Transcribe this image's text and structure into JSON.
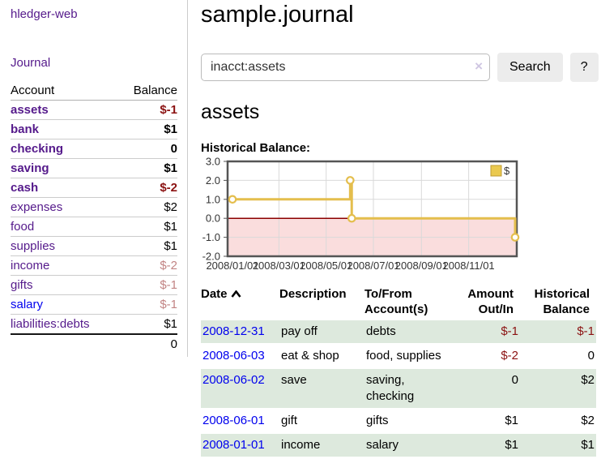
{
  "app": {
    "title": "hledger-web"
  },
  "sidebar": {
    "journal_link": "Journal",
    "accounts_table": {
      "headers": [
        "Account",
        "Balance"
      ],
      "rows": [
        {
          "account": "assets",
          "indent": 1,
          "bold": true,
          "link": "visited",
          "balance": "$-1",
          "style": "neg"
        },
        {
          "account": "bank",
          "indent": 2,
          "bold": true,
          "link": "visited",
          "balance": "$1",
          "style": "pos"
        },
        {
          "account": "checking",
          "indent": 3,
          "bold": true,
          "link": "visited",
          "balance": "0",
          "style": "pos"
        },
        {
          "account": "saving",
          "indent": 3,
          "bold": true,
          "link": "visited",
          "balance": "$1",
          "style": "pos"
        },
        {
          "account": "cash",
          "indent": 2,
          "bold": true,
          "link": "visited",
          "balance": "$-2",
          "style": "neg"
        },
        {
          "account": "expenses",
          "indent": 1,
          "bold": false,
          "link": "visited",
          "balance": "$2",
          "style": "pos"
        },
        {
          "account": "food",
          "indent": 2,
          "bold": false,
          "link": "visited",
          "balance": "$1",
          "style": "pos"
        },
        {
          "account": "supplies",
          "indent": 2,
          "bold": false,
          "link": "visited",
          "balance": "$1",
          "style": "pos"
        },
        {
          "account": "income",
          "indent": 1,
          "bold": false,
          "link": "visited",
          "balance": "$-2",
          "style": "neg-faded"
        },
        {
          "account": "gifts",
          "indent": 2,
          "bold": false,
          "link": "visited",
          "balance": "$-1",
          "style": "neg-faded"
        },
        {
          "account": "salary",
          "indent": 2,
          "bold": false,
          "link": "unvisited",
          "balance": "$-1",
          "style": "neg-faded"
        },
        {
          "account": "liabilities:debts",
          "indent": 1,
          "bold": false,
          "link": "visited",
          "balance": "$1",
          "style": "pos"
        }
      ],
      "total": "0"
    }
  },
  "header": {
    "title": "sample.journal"
  },
  "search": {
    "value": "inacct:assets",
    "clear_icon": "×",
    "button": "Search",
    "help_button": "?"
  },
  "main": {
    "account_heading": "assets",
    "chart_label": "Historical Balance:"
  },
  "chart_data": {
    "type": "line",
    "step": true,
    "title": "Historical Balance",
    "series": [
      {
        "name": "$",
        "points": [
          [
            "2008-01-01",
            1
          ],
          [
            "2008-06-01",
            2
          ],
          [
            "2008-06-03",
            0
          ],
          [
            "2008-12-31",
            -1
          ]
        ]
      }
    ],
    "x_ticks": [
      "2008/01/01",
      "2008/03/01",
      "2008/05/01",
      "2008/07/01",
      "2008/09/01",
      "2008/11/01"
    ],
    "y_ticks": [
      3.0,
      2.0,
      1.0,
      0.0,
      -1.0,
      -2.0
    ],
    "ylim": [
      -2,
      3
    ],
    "xlim": [
      "2008-01-01",
      "2008-12-31"
    ],
    "legend": {
      "label": "$",
      "position": "top-right"
    },
    "grid": true,
    "colors": {
      "line": "#e4be4d",
      "marker_fill": "#ffffff",
      "legend_fill": "#eac94f",
      "legend_border": "#bf9b30",
      "negative_region": "#fadddd",
      "zero_line": "#8b0000",
      "grid": "#d9d9d9",
      "border": "#555555",
      "tick_text": "#333333"
    }
  },
  "transactions_table": {
    "headers": {
      "date": "Date",
      "sort_icon_name": "chevron-up",
      "description": "Description",
      "accounts_line1": "To/From",
      "accounts_line2": "Account(s)",
      "amount_line1": "Amount",
      "amount_line2": "Out/In",
      "balance_line1": "Historical",
      "balance_line2": "Balance"
    },
    "rows": [
      {
        "date": "2008-12-31",
        "description": "pay off",
        "accounts": "debts",
        "amount": "$-1",
        "amount_style": "neg",
        "balance": "$-1",
        "balance_style": "neg"
      },
      {
        "date": "2008-06-03",
        "description": "eat & shop",
        "accounts": "food, supplies",
        "amount": "$-2",
        "amount_style": "neg",
        "balance": "0",
        "balance_style": "pos"
      },
      {
        "date": "2008-06-02",
        "description": "save",
        "accounts": "saving, checking",
        "amount": "0",
        "amount_style": "pos",
        "balance": "$2",
        "balance_style": "pos"
      },
      {
        "date": "2008-06-01",
        "description": "gift",
        "accounts": "gifts",
        "amount": "$1",
        "amount_style": "pos",
        "balance": "$2",
        "balance_style": "pos"
      },
      {
        "date": "2008-01-01",
        "description": "income",
        "accounts": "salary",
        "amount": "$1",
        "amount_style": "pos",
        "balance": "$1",
        "balance_style": "pos"
      }
    ]
  },
  "colors": {
    "visited_link": "#551a8b",
    "unvisited_link": "#0000ee",
    "negative": "#8b1212",
    "negative_faded": "#c28484",
    "row_stripe": "#dde9dd",
    "button_bg": "#ececec"
  }
}
